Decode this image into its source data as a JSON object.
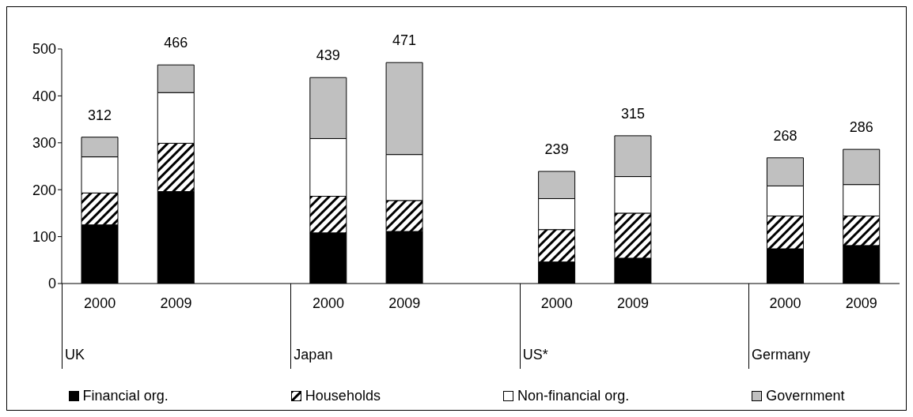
{
  "chart_data": {
    "type": "bar",
    "stacked": true,
    "categories": [
      "2000",
      "2009",
      null,
      "2000",
      "2009",
      null,
      "2000",
      "2009",
      null,
      "2000",
      "2009"
    ],
    "series": [
      {
        "name": "Financial org.",
        "color": "#000000",
        "values": [
          125,
          196,
          null,
          108,
          111,
          null,
          46,
          54,
          null,
          74,
          81
        ]
      },
      {
        "name": "Households",
        "color": "#000000",
        "values": [
          68,
          103,
          null,
          78,
          66,
          null,
          69,
          96,
          null,
          70,
          63
        ]
      },
      {
        "name": "Non-financial org.",
        "color": "#ffffff",
        "values": [
          77,
          108,
          null,
          123,
          98,
          null,
          66,
          78,
          null,
          64,
          67
        ]
      },
      {
        "name": "Government",
        "color": "#c0c0c0",
        "values": [
          42,
          59,
          null,
          130,
          196,
          null,
          58,
          87,
          null,
          60,
          75
        ]
      }
    ],
    "totals": [
      "312",
      "466",
      null,
      "439",
      "471",
      null,
      "239",
      "315",
      null,
      "268",
      "286"
    ],
    "annotations": [
      "UK",
      "Japan",
      "US*",
      "Germany"
    ],
    "ylim": [
      0,
      500
    ],
    "yticks": [
      0,
      100,
      200,
      300,
      400,
      500
    ],
    "grid": false,
    "legend": "bottom"
  }
}
